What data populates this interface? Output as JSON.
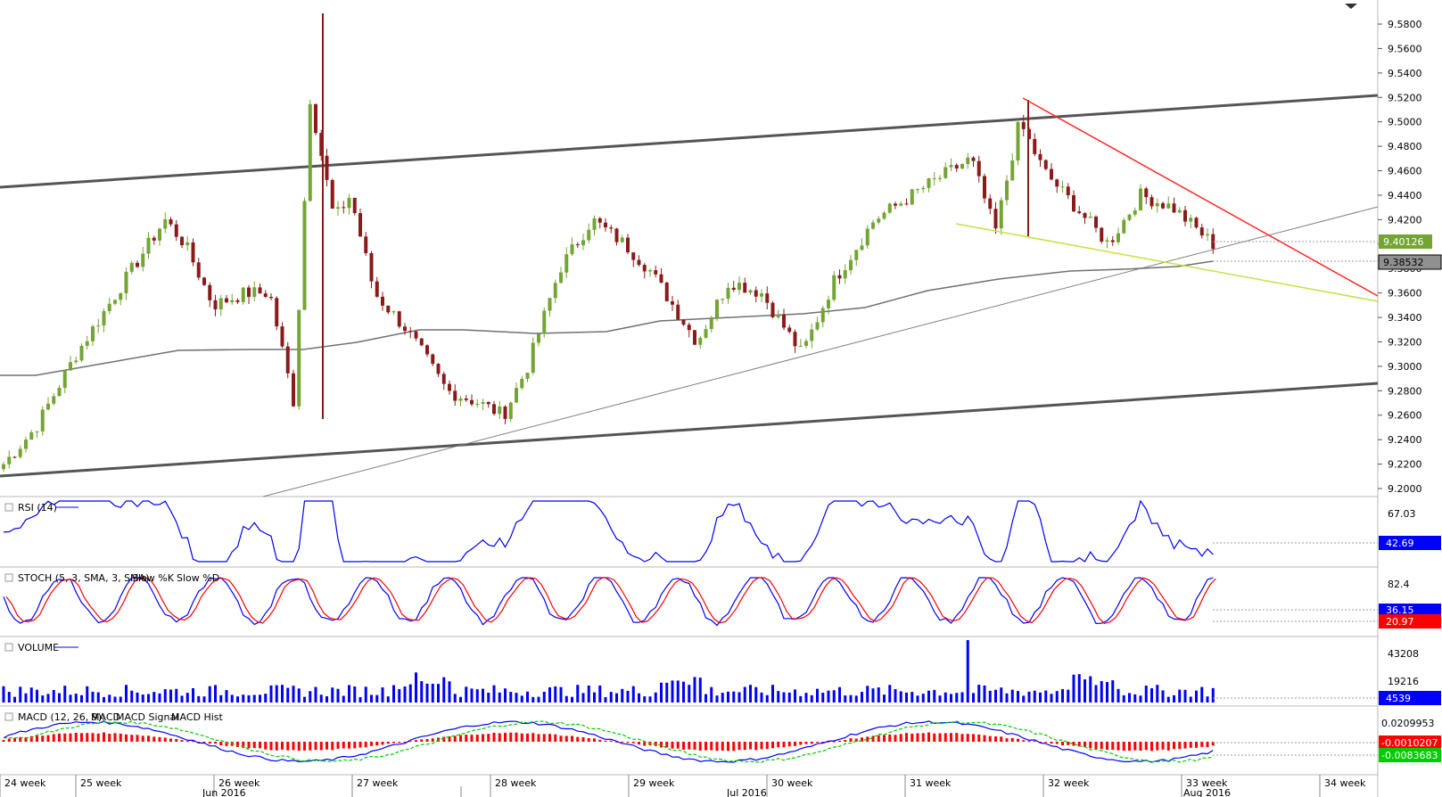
{
  "chart_data": {
    "type": "candlestick",
    "instrument_note": "",
    "price_axis": {
      "ticks": [
        "9.5800",
        "9.5600",
        "9.5400",
        "9.5200",
        "9.5000",
        "9.4800",
        "9.4600",
        "9.4400",
        "9.4200",
        "9.4000",
        "9.3800",
        "9.3600",
        "9.3400",
        "9.3200",
        "9.3000",
        "9.2800",
        "9.2600",
        "9.2400",
        "9.2200",
        "9.2000"
      ],
      "range": [
        9.2,
        9.58
      ]
    },
    "current_price_tag": "9.40126",
    "ma_price_tag": "9.38532",
    "week_labels": [
      "24 week",
      "25 week",
      "26 week",
      "27 week",
      "28 week",
      "29 week",
      "30 week",
      "31 week",
      "32 week",
      "33 week",
      "34 week"
    ],
    "month_labels": [
      "Jun 2016",
      "Jul 2016",
      "Aug 2016"
    ],
    "colors": {
      "up": "#73a533",
      "down": "#8b1a1a",
      "ma": "#707070",
      "trend_dark": "#555555",
      "red_line": "#ff2a2a",
      "yellow_line": "#c8e040",
      "blue": "#0000ff",
      "red": "#ff0000",
      "green": "#00cc00"
    },
    "candles_ohlc_sample_note": "",
    "indicators": [
      {
        "name": "RSI",
        "legend": "RSI (14)",
        "axis_ticks": [
          "67.03"
        ],
        "value_tag": "42.69"
      },
      {
        "name": "STOCH",
        "legend_prefix": "STOCH (5, 3, SMA, 3, SMA)",
        "legend_k": "Slow %K",
        "legend_d": "Slow %D",
        "axis_ticks": [
          "82.4"
        ],
        "value_tags": [
          "36.15",
          "20.97"
        ]
      },
      {
        "name": "VOLUME",
        "legend": "VOLUME",
        "axis_ticks": [
          "43208",
          "19216"
        ],
        "value_tag": "4539"
      },
      {
        "name": "MACD",
        "legend_prefix": "MACD (12, 26, 9):",
        "legend_macd": "MACD",
        "legend_signal": "MACD Signal",
        "legend_hist": "MACD Hist",
        "axis_ticks": [
          "0.0209953"
        ],
        "value_tags": [
          "-0.0010207",
          "-0.0083683"
        ]
      }
    ]
  }
}
